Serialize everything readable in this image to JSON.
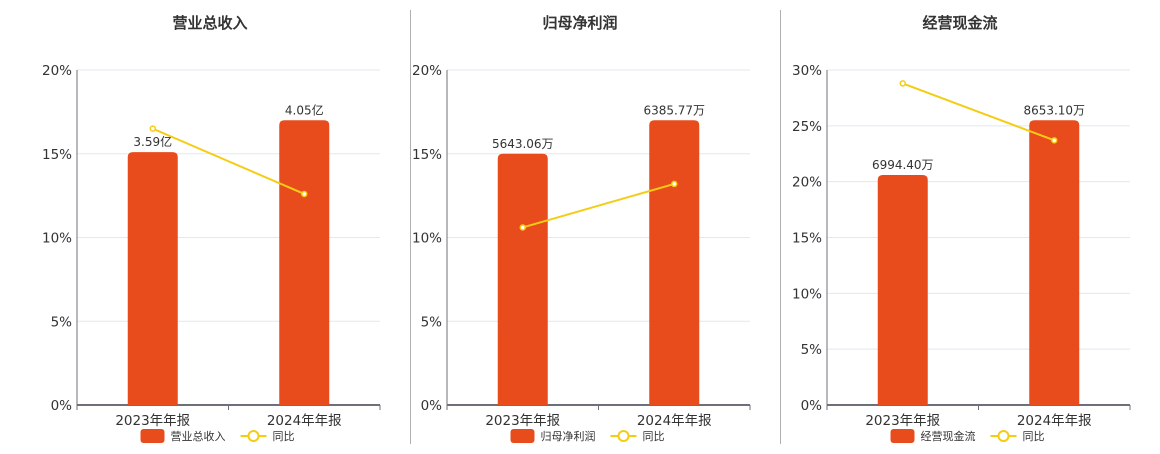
{
  "chart_data": [
    {
      "type": "bar+line",
      "title": "营业总收入",
      "categories": [
        "2023年年报",
        "2024年年报"
      ],
      "series": [
        {
          "name": "营业总收入",
          "type": "bar",
          "values": [
            15.1,
            17.0
          ],
          "labels": [
            "3.59亿",
            "4.05亿"
          ],
          "color": "#e84c1c"
        },
        {
          "name": "同比",
          "type": "line",
          "values": [
            16.5,
            12.6
          ],
          "color": "#f5cc14"
        }
      ],
      "yticks": [
        "0%",
        "5%",
        "10%",
        "15%",
        "20%"
      ],
      "ylim": [
        0,
        20
      ],
      "xlabel": "",
      "ylabel": "",
      "grid": true,
      "legend_position": "bottom"
    },
    {
      "type": "bar+line",
      "title": "归母净利润",
      "categories": [
        "2023年年报",
        "2024年年报"
      ],
      "series": [
        {
          "name": "归母净利润",
          "type": "bar",
          "values": [
            15.0,
            17.0
          ],
          "labels": [
            "5643.06万",
            "6385.77万"
          ],
          "color": "#e84c1c"
        },
        {
          "name": "同比",
          "type": "line",
          "values": [
            10.6,
            13.2
          ],
          "color": "#f5cc14"
        }
      ],
      "yticks": [
        "0%",
        "5%",
        "10%",
        "15%",
        "20%"
      ],
      "ylim": [
        0,
        20
      ],
      "xlabel": "",
      "ylabel": "",
      "grid": true,
      "legend_position": "bottom"
    },
    {
      "type": "bar+line",
      "title": "经营现金流",
      "categories": [
        "2023年年报",
        "2024年年报"
      ],
      "series": [
        {
          "name": "经营现金流",
          "type": "bar",
          "values": [
            20.6,
            25.5
          ],
          "labels": [
            "6994.40万",
            "8653.10万"
          ],
          "color": "#e84c1c"
        },
        {
          "name": "同比",
          "type": "line",
          "values": [
            28.8,
            23.7
          ],
          "color": "#f5cc14"
        }
      ],
      "yticks": [
        "0%",
        "5%",
        "10%",
        "15%",
        "20%",
        "25%",
        "30%"
      ],
      "ylim": [
        0,
        30
      ],
      "xlabel": "",
      "ylabel": "",
      "grid": true,
      "legend_position": "bottom"
    }
  ],
  "colors": {
    "bar": "#e84c1c",
    "line": "#f5cc14",
    "grid": "#e3e8ef",
    "axis": "#6e7079",
    "text": "#333333"
  }
}
